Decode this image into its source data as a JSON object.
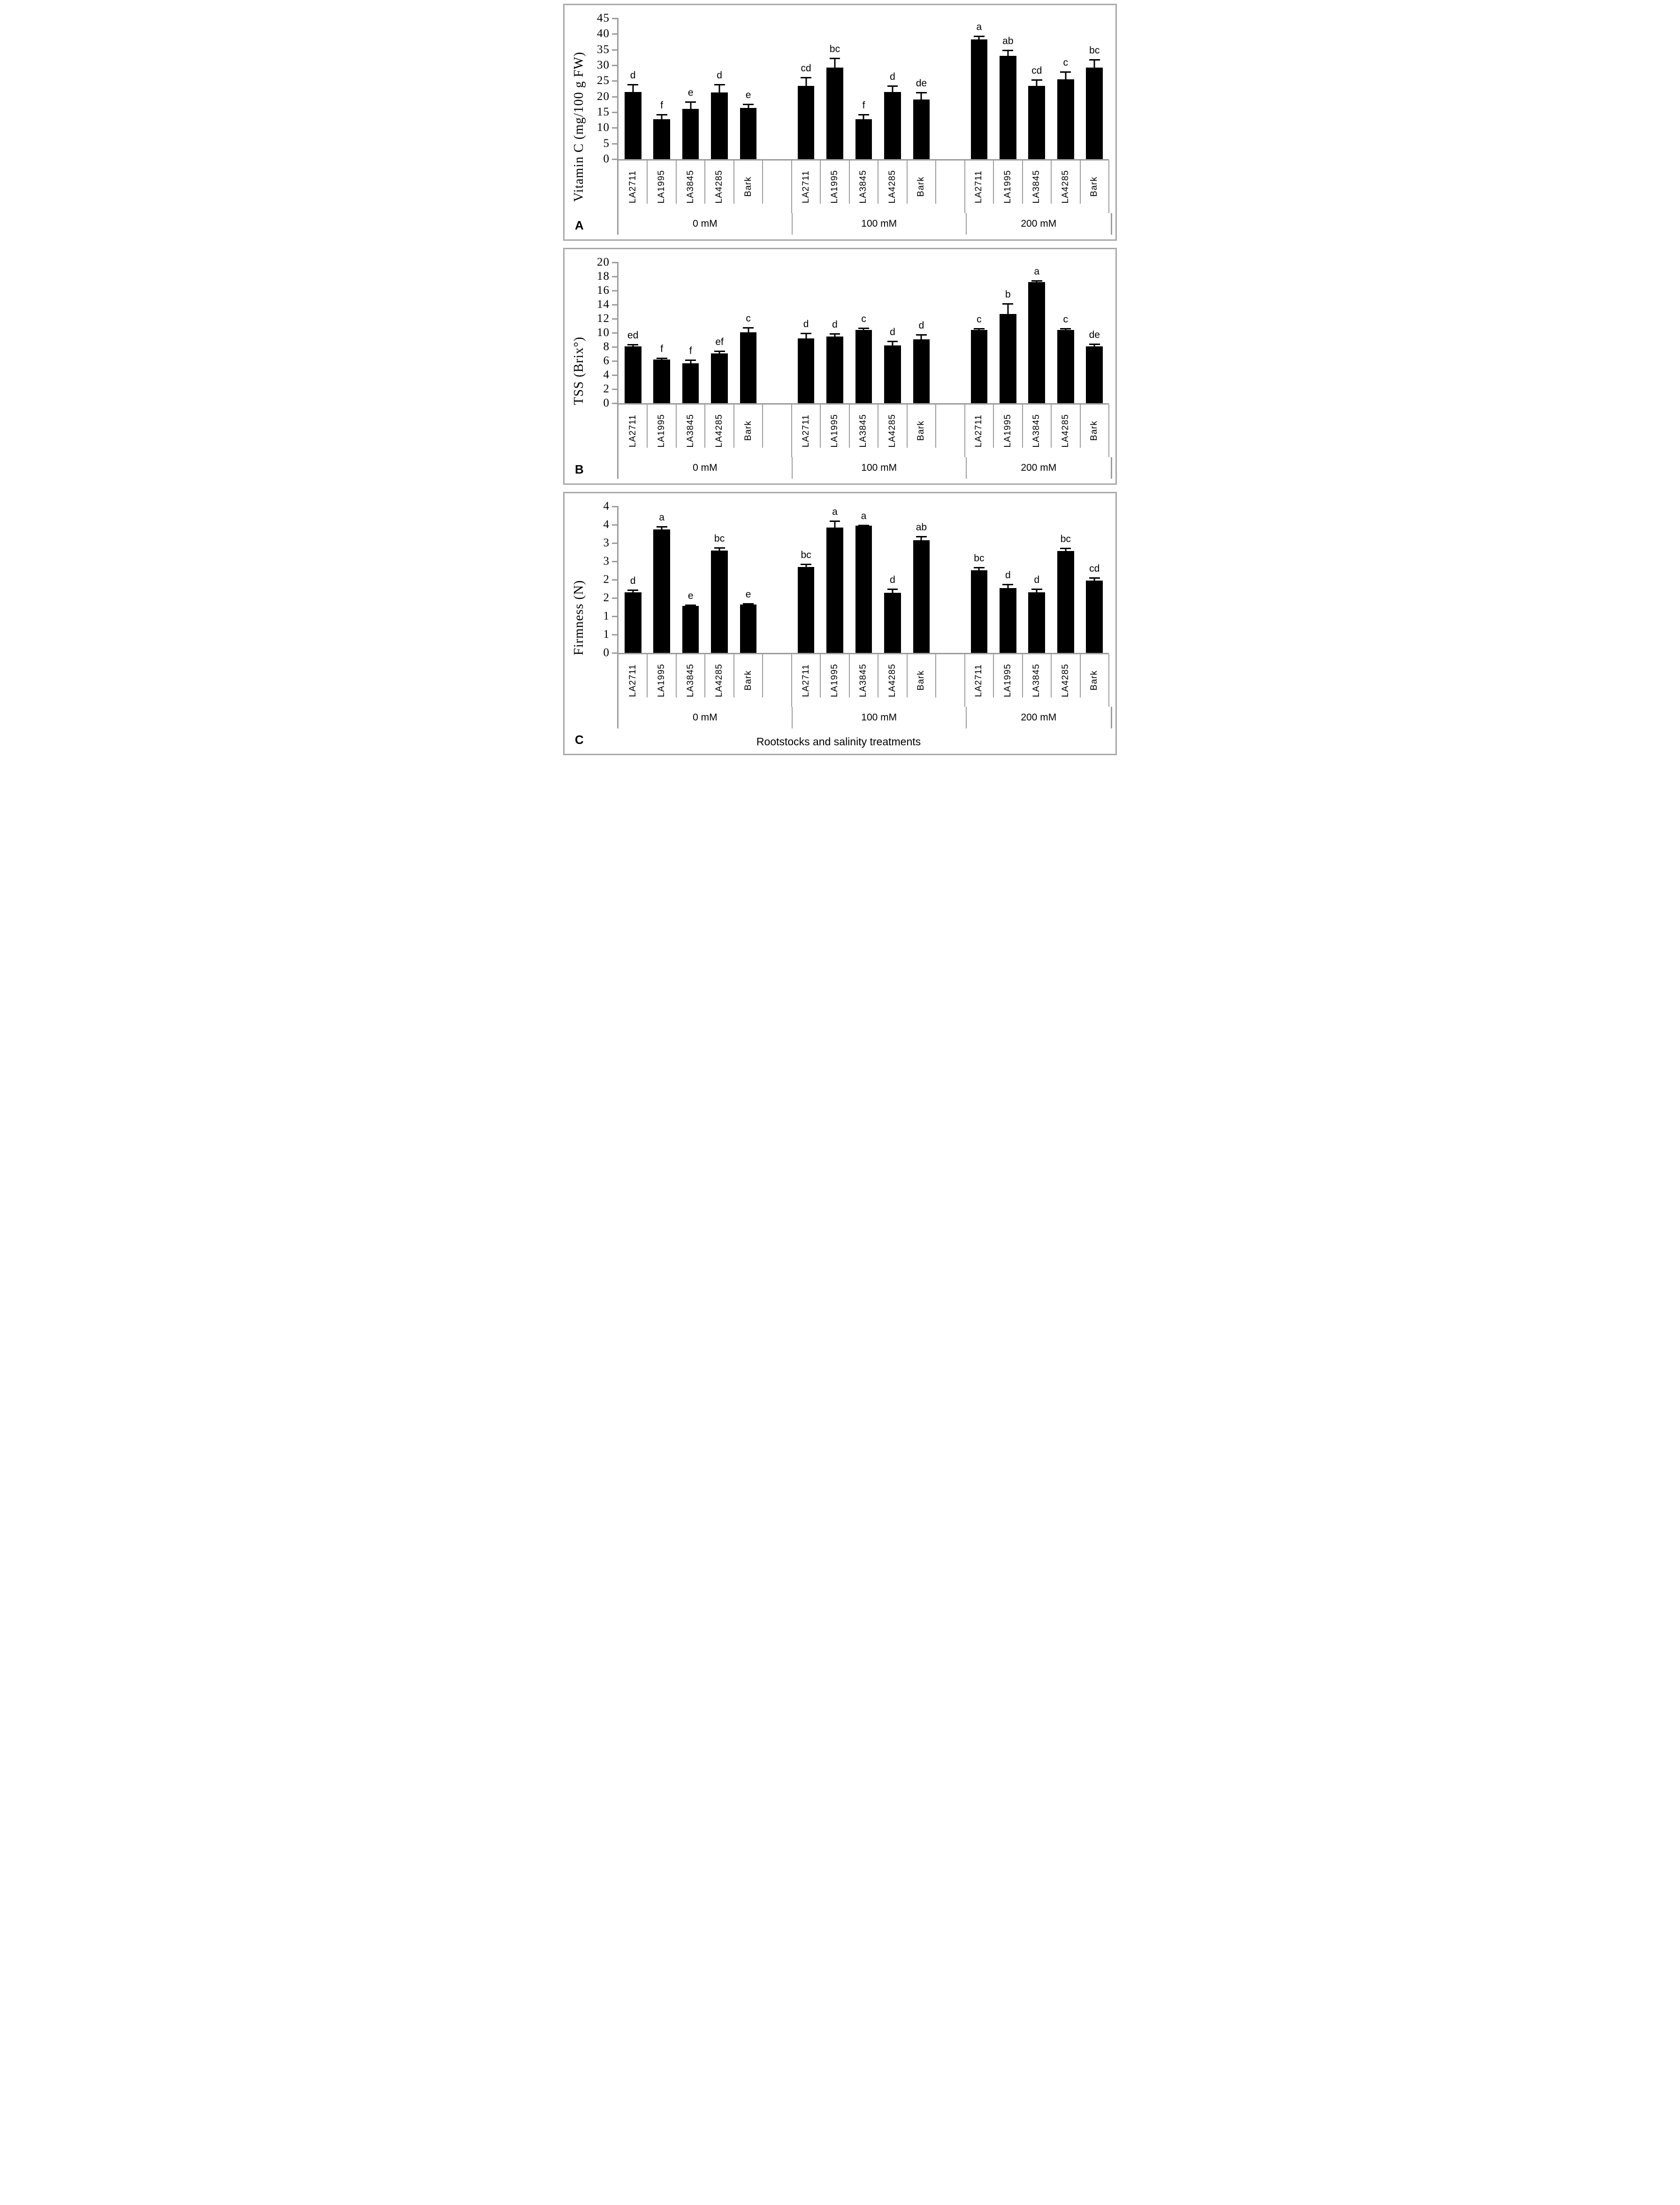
{
  "figure": {
    "x_axis_title": "Rootstocks and salinity treatments",
    "categories_note": "5 rootstocks repeated under 3 salinity treatments",
    "colors": {
      "bar": "#000000",
      "axis": "#9d9d9d",
      "panel_border": "#a8a8a8",
      "text": "#000000"
    }
  },
  "chart_data": [
    {
      "type": "bar",
      "panel_label": "A",
      "ylabel": "Vitamin C (mg/100 g FW)",
      "ymax": 45,
      "yticks": [
        "45",
        "40",
        "35",
        "30",
        "25",
        "20",
        "15",
        "10",
        "5",
        "0"
      ],
      "grid": false,
      "categories": [
        "LA2711",
        "LA1995",
        "LA3845",
        "LA4285",
        "Bark"
      ],
      "groups": [
        {
          "label": "0 mM",
          "values": [
            21.5,
            12.8,
            16.1,
            21.3,
            16.4
          ],
          "errors": [
            2.5,
            1.6,
            2.4,
            2.7,
            1.3
          ],
          "letters": [
            "d",
            "f",
            "e",
            "d",
            "e"
          ]
        },
        {
          "label": "100 mM",
          "values": [
            23.4,
            29.3,
            12.7,
            21.5,
            19.1
          ],
          "errors": [
            2.9,
            3.1,
            1.7,
            2.1,
            2.4
          ],
          "letters": [
            "cd",
            "bc",
            "f",
            "d",
            "de"
          ]
        },
        {
          "label": "200 mM",
          "values": [
            38.3,
            33.0,
            23.4,
            25.5,
            29.3
          ],
          "errors": [
            1.1,
            2.0,
            2.1,
            2.5,
            2.7
          ],
          "letters": [
            "a",
            "ab",
            "cd",
            "c",
            "bc"
          ]
        }
      ]
    },
    {
      "type": "bar",
      "panel_label": "B",
      "ylabel": "TSS (Brix°)",
      "ymax": 20,
      "yticks": [
        "20",
        "18",
        "16",
        "14",
        "12",
        "10",
        "8",
        "6",
        "4",
        "2",
        "0"
      ],
      "grid": false,
      "categories": [
        "LA2711",
        "LA1995",
        "LA3845",
        "LA4285",
        "Bark"
      ],
      "groups": [
        {
          "label": "0 mM",
          "values": [
            8.1,
            6.2,
            5.7,
            7.1,
            10.1
          ],
          "errors": [
            0.3,
            0.3,
            0.5,
            0.35,
            0.7
          ],
          "letters": [
            "ed",
            "f",
            "f",
            "ef",
            "c"
          ]
        },
        {
          "label": "100 mM",
          "values": [
            9.2,
            9.5,
            10.4,
            8.2,
            9.1
          ],
          "errors": [
            0.8,
            0.45,
            0.35,
            0.7,
            0.7
          ],
          "letters": [
            "d",
            "d",
            "c",
            "d",
            "d"
          ]
        },
        {
          "label": "200 mM",
          "values": [
            10.4,
            12.7,
            17.2,
            10.4,
            8.1
          ],
          "errors": [
            0.25,
            1.5,
            0.3,
            0.3,
            0.35
          ],
          "letters": [
            "c",
            "b",
            "a",
            "c",
            "de"
          ]
        }
      ]
    },
    {
      "type": "bar",
      "panel_label": "C",
      "ylabel": "Firmness (N)",
      "xlabel": "Rootstocks and salinity treatments",
      "ymax": 4,
      "yticks": [
        "4",
        "4",
        "3",
        "3",
        "2",
        "2",
        "1",
        "1",
        "0"
      ],
      "grid": false,
      "categories": [
        "LA2711",
        "LA1995",
        "LA3845",
        "LA4285",
        "Bark"
      ],
      "groups": [
        {
          "label": "0 mM",
          "values": [
            1.65,
            3.37,
            1.28,
            2.8,
            1.32
          ],
          "errors": [
            0.08,
            0.09,
            0.04,
            0.08,
            0.04
          ],
          "letters": [
            "d",
            "a",
            "e",
            "bc",
            "e"
          ]
        },
        {
          "label": "100 mM",
          "values": [
            2.35,
            3.42,
            3.47,
            1.64,
            3.08
          ],
          "errors": [
            0.08,
            0.2,
            0.03,
            0.12,
            0.11
          ],
          "letters": [
            "bc",
            "a",
            "a",
            "d",
            "ab"
          ]
        },
        {
          "label": "200 mM",
          "values": [
            2.26,
            1.77,
            1.65,
            2.78,
            1.98
          ],
          "errors": [
            0.09,
            0.11,
            0.11,
            0.09,
            0.09
          ],
          "letters": [
            "bc",
            "d",
            "d",
            "bc",
            "cd"
          ]
        }
      ]
    }
  ]
}
